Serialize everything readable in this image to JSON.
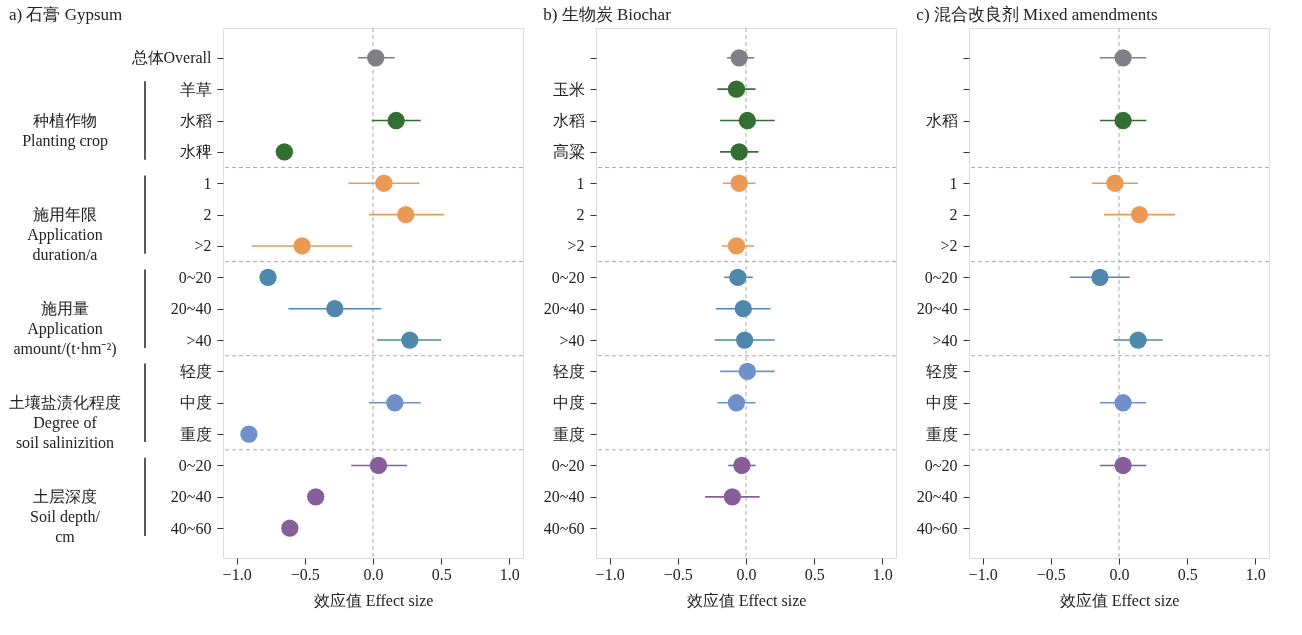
{
  "chart_data": [
    {
      "type": "scatter",
      "orientation": "horizontal",
      "title": "a) 石膏 Gypsum",
      "xlabel": "效应值 Effect size",
      "marker": "circle",
      "categories": [
        "总体Overall",
        "羊草",
        "水稻",
        "水稗",
        "1",
        "2",
        ">2",
        "0~20",
        "20~40",
        ">40",
        "轻度",
        "中度",
        "重度",
        "0~20",
        "20~40",
        "40~60"
      ],
      "values": [
        0.02,
        null,
        0.17,
        -0.65,
        0.08,
        0.24,
        -0.52,
        -0.77,
        -0.28,
        0.27,
        null,
        0.16,
        -0.91,
        0.04,
        -0.42,
        -0.61
      ],
      "errors": [
        [
          -0.11,
          0.16
        ],
        null,
        [
          -0.01,
          0.35
        ],
        null,
        [
          -0.18,
          0.34
        ],
        [
          -0.03,
          0.52
        ],
        [
          -0.89,
          -0.15
        ],
        null,
        [
          -0.62,
          0.06
        ],
        [
          0.03,
          0.5
        ],
        null,
        [
          -0.03,
          0.35
        ],
        null,
        [
          -0.16,
          0.25
        ],
        null,
        null
      ],
      "colors": [
        "#7f7f85",
        "#336e33",
        "#336e33",
        "#336e33",
        "#eb9a55",
        "#eb9a55",
        "#eb9a55",
        "#4f88aa",
        "#4f88aa",
        "#4f88aa",
        "#7090cc",
        "#7090cc",
        "#7090cc",
        "#875e9a",
        "#875e9a",
        "#875e9a"
      ],
      "xlim": [
        -1.1,
        1.1
      ],
      "xticks": [
        {
          "value": -1,
          "label": "−1.0"
        },
        {
          "value": -0.5,
          "label": "−0.5"
        },
        {
          "value": 0,
          "label": "0.0"
        },
        {
          "value": 0.5,
          "label": "0.5"
        },
        {
          "value": 1,
          "label": "1.0"
        }
      ],
      "ref_lines": [
        {
          "axis": "x",
          "value": 0,
          "color": "#aaaaaa",
          "line_style": "dashed"
        }
      ],
      "annotations": [
        "种植作物\nPlanting crop",
        "施用年限\nApplication\nduration/a",
        "施用量\nApplication\namount/(t·hm⁻²)",
        "土壤盐渍化程度\nDegree of\nsoil salinizition",
        "土层深度\nSoil depth/\ncm"
      ]
    },
    {
      "type": "scatter",
      "orientation": "horizontal",
      "title": "b) 生物炭 Biochar",
      "xlabel": "效应值 Effect size",
      "marker": "circle",
      "categories": [
        null,
        "玉米",
        "水稻",
        "高粱",
        "1",
        "2",
        ">2",
        "0~20",
        "20~40",
        ">40",
        "轻度",
        "中度",
        "重度",
        "0~20",
        "20~40",
        "40~60"
      ],
      "values": [
        -0.05,
        -0.07,
        0.01,
        -0.05,
        -0.05,
        null,
        -0.07,
        -0.06,
        -0.02,
        -0.01,
        0.01,
        -0.07,
        null,
        -0.03,
        -0.1,
        null
      ],
      "errors": [
        [
          -0.14,
          0.06
        ],
        [
          -0.21,
          0.07
        ],
        [
          -0.19,
          0.21
        ],
        [
          -0.19,
          0.09
        ],
        [
          -0.17,
          0.07
        ],
        null,
        [
          -0.18,
          0.06
        ],
        [
          -0.16,
          0.05
        ],
        [
          -0.22,
          0.18
        ],
        [
          -0.23,
          0.21
        ],
        [
          -0.19,
          0.21
        ],
        [
          -0.21,
          0.07
        ],
        null,
        [
          -0.13,
          0.07
        ],
        [
          -0.3,
          0.1
        ],
        null
      ],
      "colors": [
        "#7f7f85",
        "#336e33",
        "#336e33",
        "#336e33",
        "#eb9a55",
        "#eb9a55",
        "#eb9a55",
        "#4f88aa",
        "#4f88aa",
        "#4f88aa",
        "#7090cc",
        "#7090cc",
        "#7090cc",
        "#875e9a",
        "#875e9a",
        "#875e9a"
      ],
      "xlim": [
        -1.1,
        1.1
      ],
      "xticks": [
        {
          "value": -1,
          "label": "−1.0"
        },
        {
          "value": -0.5,
          "label": "−0.5"
        },
        {
          "value": 0,
          "label": "0.0"
        },
        {
          "value": 0.5,
          "label": "0.5"
        },
        {
          "value": 1,
          "label": "1.0"
        }
      ],
      "ref_lines": [
        {
          "axis": "x",
          "value": 0,
          "color": "#aaaaaa",
          "line_style": "dashed"
        }
      ]
    },
    {
      "type": "scatter",
      "orientation": "horizontal",
      "title": "c) 混合改良剂 Mixed amendments",
      "xlabel": "效应值 Effect size",
      "marker": "circle",
      "categories": [
        null,
        null,
        "水稻",
        null,
        "1",
        "2",
        ">2",
        "0~20",
        "20~40",
        ">40",
        "轻度",
        "中度",
        "重度",
        "0~20",
        "20~40",
        "40~60"
      ],
      "values": [
        0.03,
        null,
        0.03,
        null,
        -0.03,
        0.15,
        null,
        -0.14,
        null,
        0.14,
        null,
        0.03,
        null,
        0.03,
        null,
        null
      ],
      "errors": [
        [
          -0.14,
          0.2
        ],
        null,
        [
          -0.14,
          0.2
        ],
        null,
        [
          -0.2,
          0.14
        ],
        [
          -0.11,
          0.41
        ],
        null,
        [
          -0.36,
          0.08
        ],
        null,
        [
          -0.04,
          0.32
        ],
        null,
        [
          -0.14,
          0.2
        ],
        null,
        [
          -0.14,
          0.2
        ],
        null,
        null
      ],
      "colors": [
        "#7f7f85",
        "#336e33",
        "#336e33",
        "#336e33",
        "#eb9a55",
        "#eb9a55",
        "#eb9a55",
        "#4f88aa",
        "#4f88aa",
        "#4f88aa",
        "#7090cc",
        "#7090cc",
        "#7090cc",
        "#875e9a",
        "#875e9a",
        "#875e9a"
      ],
      "xlim": [
        -1.1,
        1.1
      ],
      "xticks": [
        {
          "value": -1,
          "label": "−1.0"
        },
        {
          "value": -0.5,
          "label": "−0.5"
        },
        {
          "value": 0,
          "label": "0.0"
        },
        {
          "value": 0.5,
          "label": "0.5"
        },
        {
          "value": 1,
          "label": "1.0"
        }
      ],
      "ref_lines": [
        {
          "axis": "x",
          "value": 0,
          "color": "#aaaaaa",
          "line_style": "dashed"
        }
      ]
    }
  ]
}
